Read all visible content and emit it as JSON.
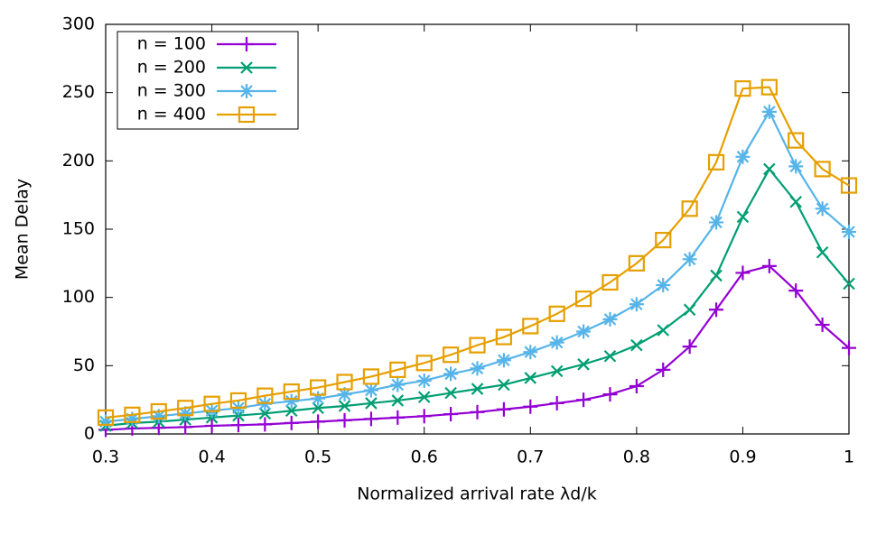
{
  "chart_data": {
    "type": "line",
    "x_label": "Normalized arrival rate λd/k",
    "y_label": "Mean Delay",
    "x": [
      0.3,
      0.325,
      0.35,
      0.375,
      0.4,
      0.425,
      0.45,
      0.475,
      0.5,
      0.525,
      0.55,
      0.575,
      0.6,
      0.625,
      0.65,
      0.675,
      0.7,
      0.725,
      0.75,
      0.775,
      0.8,
      0.825,
      0.85,
      0.875,
      0.9,
      0.925,
      0.95,
      0.975,
      1.0
    ],
    "series": [
      {
        "name": "n = 100",
        "color": "#9400d3",
        "marker": "plus",
        "values": [
          3,
          4,
          4.5,
          5,
          6,
          6.5,
          7,
          8,
          9,
          10,
          11,
          12,
          13,
          14.5,
          16,
          18,
          20,
          22.5,
          25,
          29,
          35,
          47,
          64,
          91,
          118,
          123,
          105,
          80,
          63
        ]
      },
      {
        "name": "n = 200",
        "color": "#009e73",
        "marker": "cross",
        "values": [
          6,
          8,
          9,
          10.5,
          12,
          13.5,
          15,
          17,
          19,
          20.5,
          22.5,
          24.5,
          27,
          30,
          33,
          36,
          41,
          46,
          51,
          57,
          65,
          76,
          91,
          116,
          159,
          194,
          170,
          133,
          110
        ]
      },
      {
        "name": "n = 300",
        "color": "#56b4e9",
        "marker": "star",
        "values": [
          9,
          11,
          13,
          15,
          17,
          19,
          22,
          24,
          26,
          29,
          32,
          36,
          39,
          44,
          48,
          54,
          60,
          67,
          75,
          84,
          95,
          109,
          128,
          155,
          203,
          236,
          196,
          165,
          148
        ]
      },
      {
        "name": "n = 400",
        "color": "#e69f00",
        "marker": "square",
        "values": [
          12,
          14,
          16.5,
          19,
          22,
          24.5,
          28,
          31,
          34,
          38,
          42,
          47,
          52,
          58,
          65,
          71,
          79,
          88,
          99,
          111,
          125,
          142,
          165,
          199,
          253,
          254,
          215,
          194,
          182
        ]
      }
    ],
    "xlim": [
      0.3,
      1
    ],
    "xticks": [
      0.3,
      0.4,
      0.5,
      0.6,
      0.7,
      0.8,
      0.9,
      1
    ],
    "ylim": [
      0,
      300
    ],
    "yticks": [
      0,
      50,
      100,
      150,
      200,
      250,
      300
    ],
    "legend": "top-left"
  }
}
